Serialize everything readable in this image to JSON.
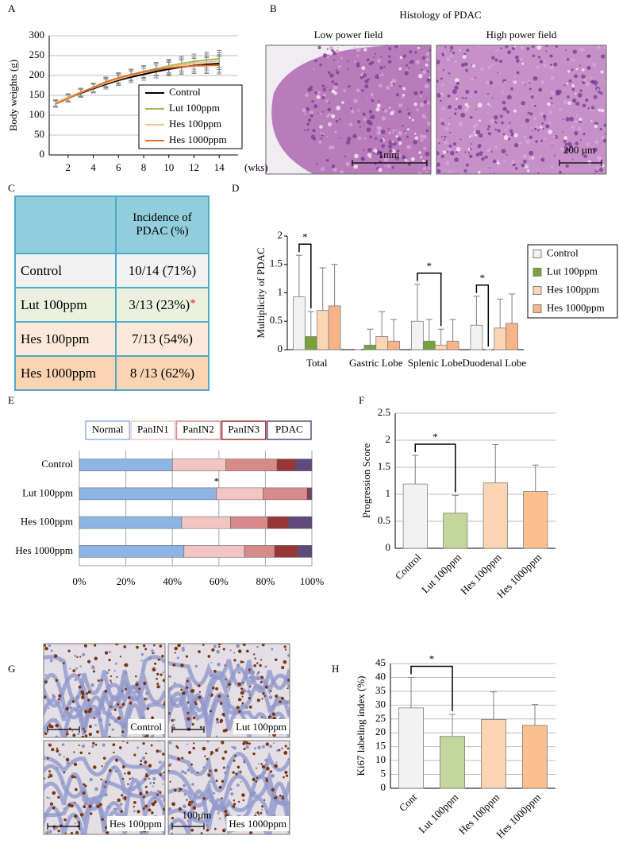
{
  "panel_labels": [
    "A",
    "B",
    "C",
    "D",
    "E",
    "F",
    "G",
    "H"
  ],
  "histology": {
    "title": "Histology of PDAC",
    "fields": [
      {
        "label": "Low power field",
        "scale": "1mm"
      },
      {
        "label": "High power field",
        "scale": "200 µm"
      }
    ]
  },
  "table": {
    "header": "Incidence of PDAC (%)",
    "rows": [
      {
        "group": "Control",
        "incidence": "10/14 (71%)"
      },
      {
        "group": "Lut 100ppm",
        "incidence": "3/13 (23%)",
        "mark": "*"
      },
      {
        "group": "Hes 100ppm",
        "incidence": "7/13 (54%)"
      },
      {
        "group": "Hes 1000ppm",
        "incidence": "8 /13 (62%)"
      }
    ]
  },
  "ki67_images": {
    "labels": [
      "Control",
      "Lut 100ppm",
      "Hes 100ppm",
      "Hes 1000ppm"
    ],
    "scale": "100µm"
  },
  "chart_data": [
    {
      "type": "line",
      "ylabel": "Body weights (g)",
      "xlabel": "(wks)",
      "x": [
        1,
        2,
        3,
        4,
        5,
        6,
        7,
        8,
        9,
        10,
        11,
        12,
        13,
        14
      ],
      "xlim": [
        0.5,
        15.5
      ],
      "xticks": [
        2,
        4,
        6,
        8,
        10,
        12,
        14
      ],
      "ylim": [
        0,
        300
      ],
      "yticks": [
        0,
        50,
        100,
        150,
        200,
        250,
        300
      ],
      "grid": true,
      "legend": "lower right",
      "series": [
        {
          "name": "Control",
          "color": "#000000",
          "values": [
            130,
            143,
            155,
            167,
            178,
            188,
            196,
            203,
            210,
            216,
            221,
            225,
            228,
            230
          ],
          "errors": [
            8,
            9,
            10,
            11,
            12,
            13,
            14,
            15,
            16,
            17,
            18,
            19,
            20,
            22
          ]
        },
        {
          "name": "Lut 100ppm",
          "color": "#9bbb59",
          "values": [
            131,
            145,
            158,
            170,
            182,
            193,
            202,
            210,
            217,
            224,
            230,
            235,
            239,
            242
          ],
          "errors": [
            8,
            9,
            10,
            11,
            12,
            13,
            14,
            15,
            16,
            17,
            18,
            19,
            20,
            21
          ]
        },
        {
          "name": "Hes 100ppm",
          "color": "#fac08f",
          "values": [
            130,
            144,
            157,
            169,
            181,
            191,
            200,
            208,
            215,
            221,
            226,
            230,
            234,
            236
          ],
          "errors": [
            8,
            9,
            10,
            11,
            12,
            13,
            14,
            15,
            16,
            17,
            18,
            19,
            20,
            21
          ]
        },
        {
          "name": "Hes 1000ppm",
          "color": "#e36c2a",
          "values": [
            128,
            142,
            156,
            170,
            184,
            194,
            202,
            209,
            215,
            219,
            222,
            224,
            225,
            226
          ],
          "errors": [
            8,
            9,
            10,
            11,
            12,
            13,
            14,
            15,
            16,
            17,
            18,
            19,
            20,
            22
          ]
        }
      ]
    },
    {
      "type": "bar",
      "ylabel": "Multiplicity of PDAC",
      "categories": [
        "Total",
        "Gastric Lobe",
        "Splenic Lobe",
        "Duodenal Lobe"
      ],
      "ylim": [
        0,
        2
      ],
      "yticks": [
        0,
        0.5,
        1,
        1.5,
        2
      ],
      "grid": false,
      "legend": "right",
      "series": [
        {
          "name": "Control",
          "color": "#f2f2f2",
          "values": [
            0.93,
            0,
            0.5,
            0.43
          ],
          "errors": [
            0.73,
            0,
            0.65,
            0.51
          ]
        },
        {
          "name": "Lut 100ppm",
          "color": "#77a33a",
          "values": [
            0.23,
            0.08,
            0.15,
            0
          ],
          "errors": [
            0.44,
            0.28,
            0.38,
            0
          ]
        },
        {
          "name": "Hes 100ppm",
          "color": "#fcd5b5",
          "values": [
            0.69,
            0.23,
            0.08,
            0.38
          ],
          "errors": [
            0.75,
            0.44,
            0.28,
            0.51
          ]
        },
        {
          "name": "Hes 1000ppm",
          "color": "#f9b38a",
          "values": [
            0.77,
            0.15,
            0.15,
            0.46
          ],
          "errors": [
            0.73,
            0.38,
            0.38,
            0.52
          ]
        }
      ],
      "annotations": [
        {
          "text": "*",
          "category": "Total",
          "between": [
            "Control",
            "Lut 100ppm"
          ]
        },
        {
          "text": "*",
          "category": "Splenic Lobe",
          "between": [
            "Control",
            "Hes 100ppm"
          ]
        },
        {
          "text": "*",
          "category": "Duodenal Lobe",
          "between": [
            "Control",
            "Lut 100ppm"
          ]
        }
      ]
    },
    {
      "type": "bar",
      "orientation": "horizontal",
      "stacked": true,
      "categories": [
        "Control",
        "Lut 100ppm",
        "Hes 100ppm",
        "Hes 1000ppm"
      ],
      "xlim": [
        0,
        100
      ],
      "xticks": [
        {
          "value": 0,
          "label": "0%"
        },
        {
          "value": 20,
          "label": "20%"
        },
        {
          "value": 40,
          "label": "40%"
        },
        {
          "value": 60,
          "label": "60%"
        },
        {
          "value": 80,
          "label": "80%"
        },
        {
          "value": 100,
          "label": "100%"
        }
      ],
      "grid": true,
      "legend": "top",
      "series": [
        {
          "name": "Normal",
          "color": "#8eb4e3",
          "values": [
            40,
            59,
            44,
            45
          ]
        },
        {
          "name": "PanIN1",
          "color": "#f2c5c5",
          "values": [
            23,
            20,
            21,
            26
          ]
        },
        {
          "name": "PanIN2",
          "color": "#d68a8a",
          "values": [
            22,
            19,
            16,
            13
          ]
        },
        {
          "name": "PanIN3",
          "color": "#953735",
          "values": [
            8,
            1,
            9,
            10
          ]
        },
        {
          "name": "PDAC",
          "color": "#604a7b",
          "values": [
            7,
            1,
            10,
            6
          ]
        }
      ],
      "annotations": [
        {
          "text": "*",
          "category": "Lut 100ppm"
        }
      ]
    },
    {
      "type": "bar",
      "ylabel": "Progression Score",
      "categories": [
        "Control",
        "Lut 100ppm",
        "Hes 100ppm",
        "Hes 1000ppm"
      ],
      "values": [
        1.19,
        0.65,
        1.21,
        1.05
      ],
      "errors": [
        0.53,
        0.33,
        0.71,
        0.49
      ],
      "colors": [
        "#f2f2f2",
        "#c3d69b",
        "#fcd5b5",
        "#fac090"
      ],
      "ylim": [
        0,
        2.5
      ],
      "yticks": [
        0,
        0.5,
        1,
        1.5,
        2,
        2.5
      ],
      "grid": true,
      "annotations": [
        {
          "text": "*",
          "between": [
            "Control",
            "Lut 100ppm"
          ]
        }
      ]
    },
    {
      "type": "bar",
      "ylabel": "Ki67 labeling index (%)",
      "categories": [
        "Cont",
        "Lut 100ppm",
        "Hes 100ppm",
        "Hes 1000ppm"
      ],
      "values": [
        29,
        18.7,
        24.8,
        22.7
      ],
      "errors": [
        11,
        8,
        10,
        7.5
      ],
      "colors": [
        "#f2f2f2",
        "#c3d69b",
        "#fcd5b5",
        "#fac090"
      ],
      "ylim": [
        0,
        45
      ],
      "yticks": [
        0,
        5,
        10,
        15,
        20,
        25,
        30,
        35,
        40,
        45
      ],
      "grid": true,
      "annotations": [
        {
          "text": "*",
          "between": [
            "Cont",
            "Lut 100ppm"
          ]
        }
      ]
    }
  ]
}
